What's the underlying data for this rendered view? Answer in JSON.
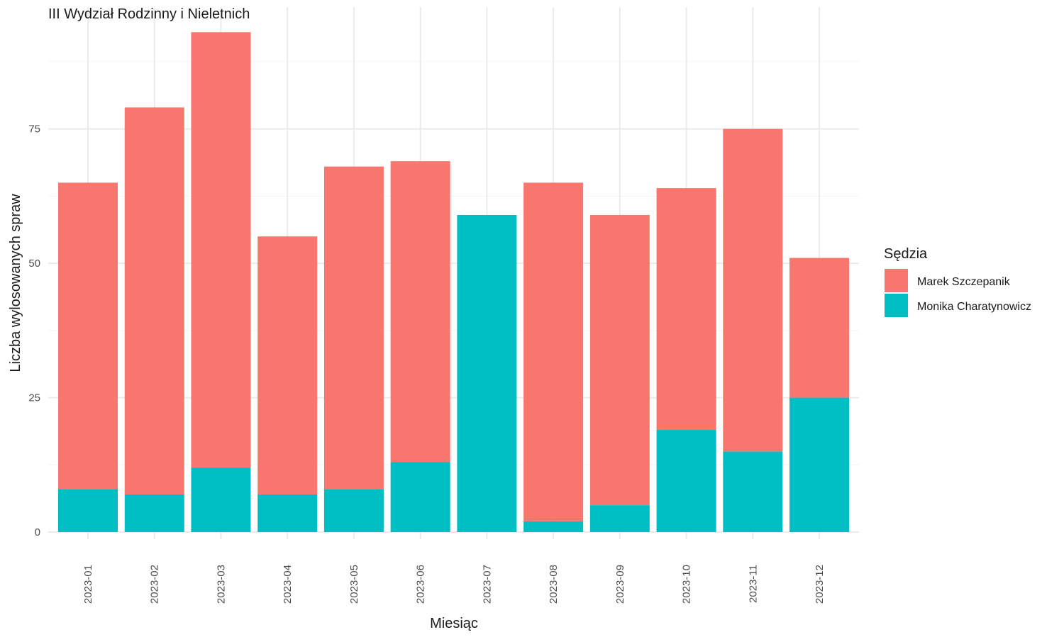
{
  "chart_data": {
    "type": "bar",
    "stacked": true,
    "title": "III Wydział Rodzinny i Nieletnich",
    "xlabel": "Miesiąc",
    "ylabel": "Liczba wylosowanych spraw",
    "categories": [
      "2023-01",
      "2023-02",
      "2023-03",
      "2023-04",
      "2023-05",
      "2023-06",
      "2023-07",
      "2023-08",
      "2023-09",
      "2023-10",
      "2023-11",
      "2023-12"
    ],
    "series": [
      {
        "name": "Monika Charatynowicz",
        "color": "#00BFC4",
        "values": [
          8,
          7,
          12,
          7,
          8,
          13,
          59,
          2,
          5,
          19,
          15,
          25
        ]
      },
      {
        "name": "Marek Szczepanik",
        "color": "#F8766D",
        "values": [
          57,
          72,
          81,
          48,
          60,
          56,
          0,
          63,
          54,
          45,
          60,
          26
        ]
      }
    ],
    "ylim": [
      0,
      97
    ],
    "yticks": [
      0,
      25,
      50,
      75
    ],
    "grid": true,
    "legend": {
      "title": "Sędzia",
      "position": "right",
      "order": [
        "Marek Szczepanik",
        "Monika Charatynowicz"
      ]
    }
  }
}
